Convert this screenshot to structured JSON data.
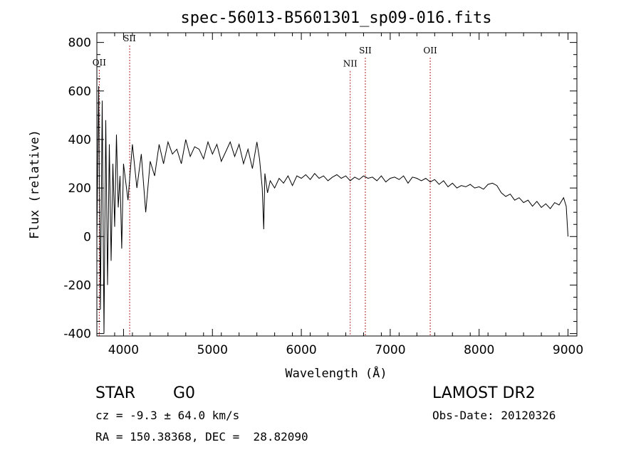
{
  "chart_data": {
    "type": "line",
    "title": "spec-56013-B5601301_sp09-016.fits",
    "xlabel": "Wavelength (Å)",
    "ylabel": "Flux (relative)",
    "xlim": [
      3700,
      9100
    ],
    "ylim": [
      -410,
      840
    ],
    "x_ticks": [
      4000,
      5000,
      6000,
      7000,
      8000,
      9000
    ],
    "y_ticks": [
      -400,
      -200,
      0,
      200,
      400,
      600,
      800
    ],
    "grid": false,
    "line_color": "#000000",
    "marker_color": "#b22222",
    "lines": [
      {
        "label": "OII",
        "x": 3727,
        "label_flux": 705
      },
      {
        "label": "SII",
        "x": 4069,
        "label_flux": 805
      },
      {
        "label": "NII",
        "x": 6550,
        "label_flux": 700
      },
      {
        "label": "SII",
        "x": 6720,
        "label_flux": 755
      },
      {
        "label": "OII",
        "x": 7450,
        "label_flux": 755
      }
    ],
    "series": [
      {
        "x": [
          3700,
          3720,
          3740,
          3760,
          3780,
          3800,
          3820,
          3840,
          3860,
          3880,
          3900,
          3920,
          3940,
          3960,
          3980,
          4000,
          4050,
          4100,
          4150,
          4200,
          4250,
          4300,
          4350,
          4400,
          4450,
          4500,
          4550,
          4600,
          4650,
          4700,
          4750,
          4800,
          4850,
          4900,
          4950,
          5000,
          5050,
          5100,
          5150,
          5200,
          5250,
          5300,
          5350,
          5400,
          5450,
          5500,
          5530,
          5560,
          5577,
          5590,
          5620,
          5650,
          5700,
          5750,
          5800,
          5850,
          5900,
          5950,
          6000,
          6050,
          6100,
          6150,
          6200,
          6250,
          6300,
          6350,
          6400,
          6450,
          6500,
          6550,
          6600,
          6650,
          6700,
          6750,
          6800,
          6850,
          6900,
          6950,
          7000,
          7050,
          7100,
          7150,
          7200,
          7250,
          7300,
          7350,
          7400,
          7450,
          7500,
          7550,
          7600,
          7650,
          7700,
          7750,
          7800,
          7850,
          7900,
          7950,
          8000,
          8050,
          8100,
          8150,
          8200,
          8250,
          8300,
          8350,
          8400,
          8450,
          8500,
          8550,
          8600,
          8650,
          8700,
          8750,
          8800,
          8850,
          8900,
          8950,
          8980,
          9000
        ],
        "values": [
          -10,
          620,
          -300,
          560,
          -400,
          480,
          -200,
          380,
          -100,
          300,
          40,
          420,
          120,
          250,
          -50,
          300,
          150,
          380,
          200,
          340,
          100,
          310,
          250,
          380,
          300,
          390,
          340,
          360,
          300,
          400,
          330,
          370,
          360,
          320,
          390,
          340,
          380,
          310,
          350,
          390,
          330,
          380,
          300,
          360,
          280,
          390,
          320,
          200,
          30,
          260,
          180,
          230,
          200,
          240,
          220,
          250,
          210,
          250,
          240,
          255,
          235,
          260,
          240,
          250,
          230,
          245,
          255,
          240,
          250,
          230,
          245,
          235,
          250,
          240,
          245,
          230,
          250,
          225,
          240,
          245,
          235,
          250,
          220,
          245,
          240,
          230,
          240,
          225,
          235,
          215,
          230,
          205,
          220,
          200,
          210,
          205,
          215,
          200,
          205,
          195,
          215,
          220,
          210,
          180,
          165,
          175,
          150,
          160,
          140,
          150,
          125,
          145,
          120,
          135,
          115,
          140,
          130,
          160,
          125,
          0
        ]
      }
    ]
  },
  "info": {
    "class": "STAR",
    "subclass": "G0",
    "survey": "LAMOST DR2",
    "redshift": "cz = -9.3 ± 64.0 km/s",
    "obs_date": "Obs-Date: 20120326",
    "coords": "RA = 150.38368, DEC =  28.82090"
  }
}
